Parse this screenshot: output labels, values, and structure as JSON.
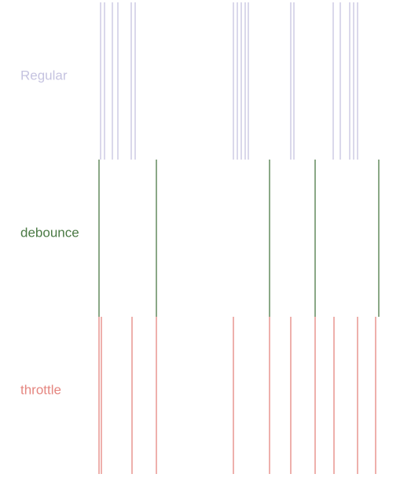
{
  "rows": [
    {
      "key": "regular",
      "label": "Regular",
      "color": "#c5c3e0",
      "events": [
        128,
        133,
        143,
        150,
        167,
        172,
        297,
        302,
        307,
        312,
        316,
        370,
        374,
        424,
        433,
        445,
        450,
        455
      ]
    },
    {
      "key": "debounce",
      "label": "debounce",
      "color": "#4b7a45",
      "events": [
        126,
        199,
        343,
        401,
        482
      ]
    },
    {
      "key": "throttle",
      "label": "throttle",
      "color": "#e58680",
      "events": [
        126,
        129,
        168,
        199,
        297,
        343,
        370,
        401,
        425,
        455,
        478
      ]
    }
  ]
}
